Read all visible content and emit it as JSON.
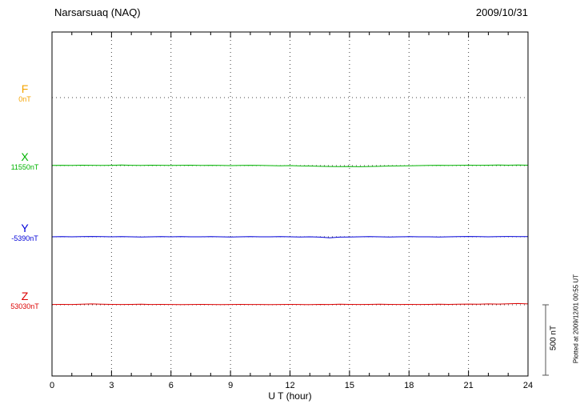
{
  "chart_data": {
    "type": "line",
    "title": "Narsarsuaq (NAQ)",
    "date": "2009/10/31",
    "xlabel": "U T (hour)",
    "x_range": [
      0,
      24
    ],
    "x_ticks": [
      0,
      3,
      6,
      9,
      12,
      15,
      18,
      21,
      24
    ],
    "x_step_hours": 0.5,
    "grid": "dotted",
    "scale_bar": {
      "label": "500 nT",
      "nT": 500
    },
    "plotted_at": "Plotted at 2009/12/01 00:55 UT",
    "series": [
      {
        "name": "F",
        "baseline_label": "0nT",
        "baseline_nT": 0,
        "color": "#F5A400",
        "deviations_nT": []
      },
      {
        "name": "X",
        "baseline_label": "11550nT",
        "baseline_nT": 11550,
        "color": "#00B400",
        "deviations_nT": [
          1,
          2,
          1,
          3,
          2,
          1,
          2,
          4,
          2,
          1,
          3,
          2,
          1,
          2,
          3,
          1,
          2,
          1,
          0,
          1,
          2,
          1,
          0,
          -1,
          0,
          -2,
          -3,
          -5,
          -6,
          -7,
          -6,
          -8,
          -6,
          -5,
          -3,
          -2,
          -1,
          0,
          1,
          2,
          1,
          2,
          3,
          2,
          3,
          4,
          3,
          4,
          3
        ]
      },
      {
        "name": "Y",
        "baseline_label": "-5390nT",
        "baseline_nT": -5390,
        "color": "#0000D8",
        "deviations_nT": [
          0,
          1,
          0,
          1,
          2,
          1,
          0,
          1,
          0,
          -1,
          0,
          1,
          0,
          1,
          0,
          0,
          1,
          0,
          -1,
          0,
          1,
          0,
          0,
          1,
          0,
          -1,
          0,
          -2,
          -7,
          -2,
          -1,
          0,
          1,
          0,
          -1,
          0,
          1,
          0,
          0,
          -1,
          0,
          1,
          2,
          1,
          0,
          1,
          2,
          1,
          1
        ]
      },
      {
        "name": "Z",
        "baseline_label": "53030nT",
        "baseline_nT": 53030,
        "color": "#DC0000",
        "deviations_nT": [
          2,
          3,
          2,
          4,
          6,
          4,
          3,
          2,
          3,
          4,
          2,
          3,
          2,
          1,
          2,
          3,
          2,
          1,
          2,
          3,
          2,
          2,
          1,
          2,
          3,
          2,
          1,
          3,
          2,
          4,
          3,
          2,
          3,
          4,
          3,
          2,
          3,
          2,
          3,
          4,
          3,
          4,
          5,
          4,
          6,
          5,
          7,
          9,
          6
        ]
      }
    ]
  }
}
